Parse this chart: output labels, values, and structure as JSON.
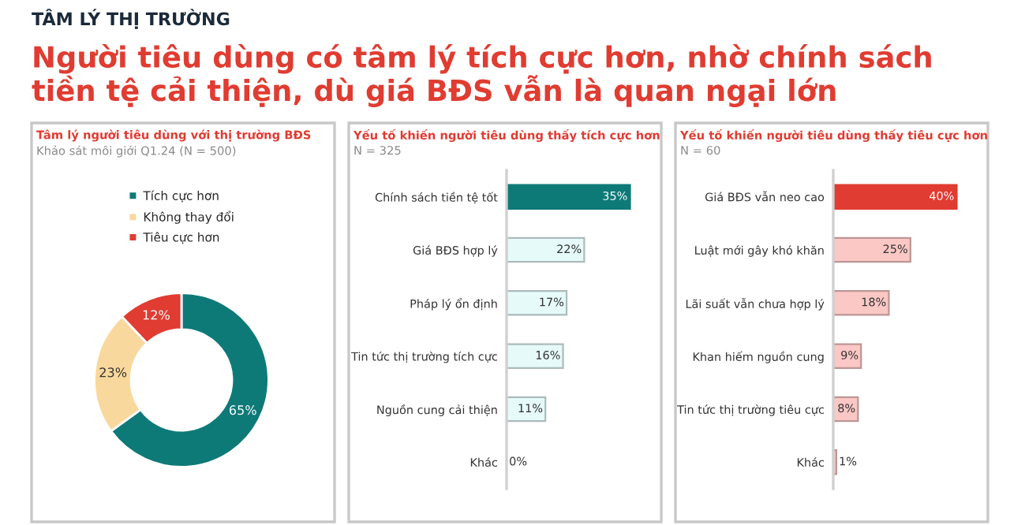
{
  "chart_data": [
    {
      "type": "donut",
      "title": "Tâm lý người tiêu dùng với thị trường BĐS",
      "subtitle": "Khảo sát môi giới Q1.24 (N = 500)",
      "annotations": [
        "TÂM LÝ THỊ TRƯỜNG",
        "Người tiêu dùng có tâm lý tích cực hơn, nhờ chính sách\ntiền tệ cải thiện, dù giá BĐS vẫn là quan ngại lớn"
      ],
      "categories": [
        "Tích cực hơn",
        "Không thay đổi",
        "Tiêu cực hơn"
      ],
      "values": [
        65,
        23,
        12
      ],
      "value_labels": [
        "65%",
        "23%",
        "12%"
      ],
      "colors": [
        "#0e7a78",
        "#f8d89c",
        "#e03c31"
      ],
      "legend": "top"
    },
    {
      "type": "bar",
      "orientation": "horizontal",
      "title": "Yếu tố khiến người tiêu dùng thấy tích cực hơn",
      "subtitle": "N = 325",
      "categories": [
        "Chính sách tiền tệ tốt",
        "Giá BĐS hợp lý",
        "Pháp lý ổn định",
        "Tin tức thị trường tích cực",
        "Nguồn cung cải thiện",
        "Khác"
      ],
      "values": [
        35,
        22,
        17,
        16,
        11,
        0
      ],
      "value_labels": [
        "35%",
        "22%",
        "17%",
        "16%",
        "11%",
        "0%"
      ],
      "colors": [
        "#0e7a78",
        "#e6fafa",
        "#e6fafa",
        "#e6fafa",
        "#e6fafa",
        "#e6fafa"
      ]
    },
    {
      "type": "bar",
      "orientation": "horizontal",
      "title": "Yếu tố khiến người tiêu dùng thấy tiêu cực hơn",
      "subtitle": "N = 60",
      "categories": [
        "Giá BĐS vẫn neo cao",
        "Luật mới gây khó khăn",
        "Lãi suất vẫn chưa hợp lý",
        "Khan hiếm nguồn cung",
        "Tin tức thị trường tiêu cực",
        "Khác"
      ],
      "values": [
        40,
        25,
        18,
        9,
        8,
        1
      ],
      "value_labels": [
        "40%",
        "25%",
        "18%",
        "9%",
        "8%",
        "1%"
      ],
      "colors": [
        "#e03c31",
        "#fbc8c5",
        "#fbc8c5",
        "#fbc8c5",
        "#fbc8c5",
        "#fbc8c5"
      ]
    }
  ]
}
